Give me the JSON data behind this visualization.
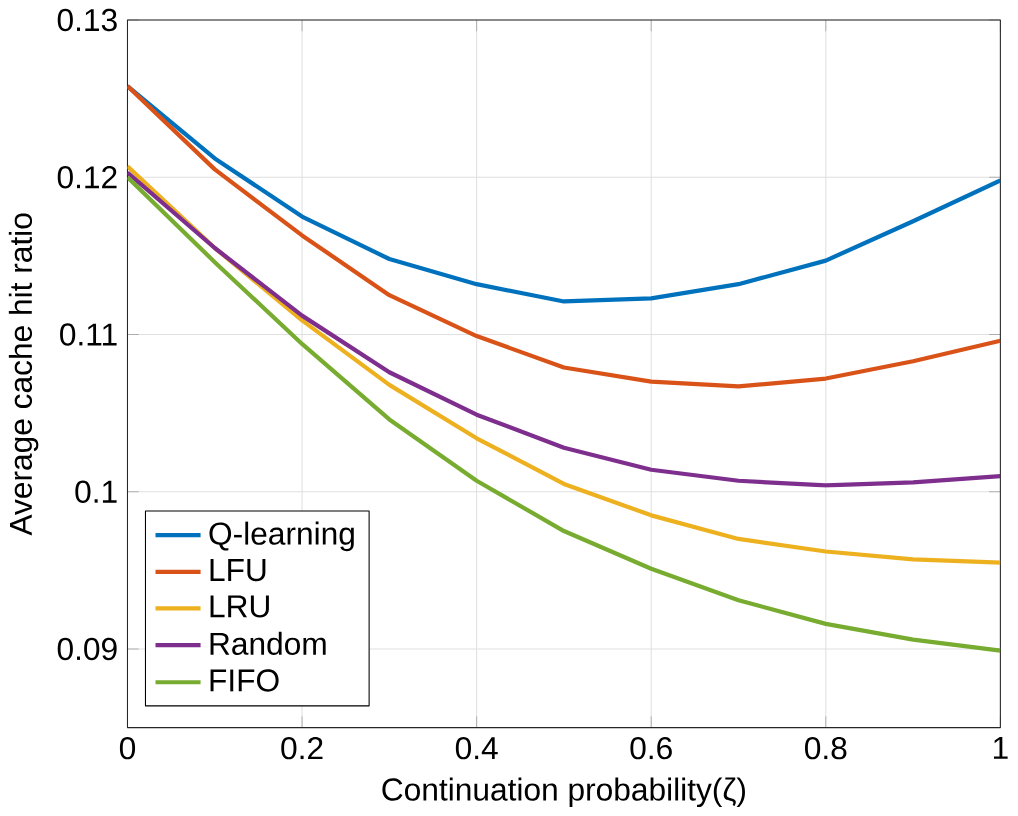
{
  "chart_data": {
    "type": "line",
    "xlabel": "Continuation probability(ζ)",
    "ylabel": "Average cache hit ratio",
    "x": [
      0,
      0.1,
      0.2,
      0.3,
      0.4,
      0.5,
      0.6,
      0.7,
      0.8,
      0.9,
      1
    ],
    "series": [
      {
        "name": "Q-learning",
        "color": "#0072bd",
        "values": [
          0.1258,
          0.1212,
          0.1175,
          0.1148,
          0.1132,
          0.1121,
          0.1123,
          0.1132,
          0.1147,
          0.1172,
          0.1198
        ]
      },
      {
        "name": "LFU",
        "color": "#d95319",
        "values": [
          0.1258,
          0.1205,
          0.1163,
          0.1125,
          0.1099,
          0.1079,
          0.107,
          0.1067,
          0.1072,
          0.1083,
          0.1096
        ]
      },
      {
        "name": "LRU",
        "color": "#edb120",
        "values": [
          0.1207,
          0.1155,
          0.1109,
          0.1068,
          0.1034,
          0.1005,
          0.0985,
          0.097,
          0.0962,
          0.0957,
          0.0955
        ]
      },
      {
        "name": "Random",
        "color": "#7e2f8e",
        "values": [
          0.1203,
          0.1155,
          0.1112,
          0.1076,
          0.1049,
          0.1028,
          0.1014,
          0.1007,
          0.1004,
          0.1006,
          0.101
        ]
      },
      {
        "name": "FIFO",
        "color": "#77ac30",
        "values": [
          0.12,
          0.1146,
          0.1094,
          0.1046,
          0.1007,
          0.0975,
          0.0951,
          0.0931,
          0.0916,
          0.0906,
          0.0899
        ]
      }
    ],
    "xlim": [
      0,
      1
    ],
    "ylim": [
      0.085,
      0.13
    ],
    "xticks": [
      0,
      0.2,
      0.4,
      0.6,
      0.8,
      1
    ],
    "yticks": [
      0.09,
      0.1,
      0.11,
      0.12,
      0.13
    ],
    "grid": true,
    "legend": "bottom left",
    "marker": "none",
    "line_style": "solid"
  }
}
